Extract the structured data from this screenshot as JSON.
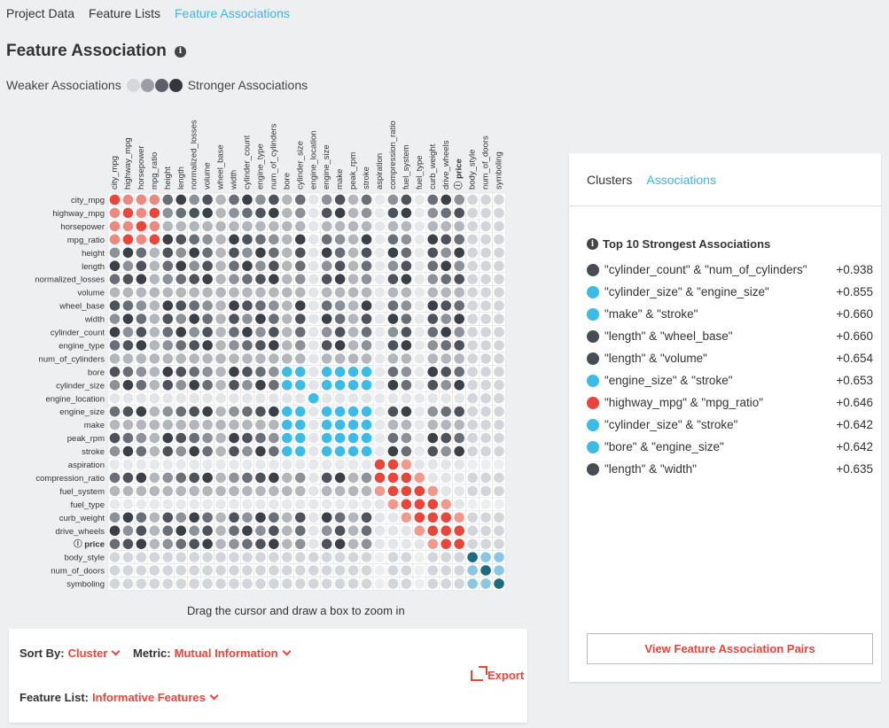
{
  "nav": {
    "tabs": [
      "Project Data",
      "Feature Lists",
      "Feature Associations"
    ],
    "active": 2
  },
  "title": "Feature Association",
  "legend": {
    "weaker": "Weaker Associations",
    "stronger": "Stronger Associations"
  },
  "matrix": {
    "features": [
      "city_mpg",
      "highway_mpg",
      "horsepower",
      "mpg_ratio",
      "height",
      "length",
      "normalized_losses",
      "volume",
      "wheel_base",
      "width",
      "cylinder_count",
      "engine_type",
      "num_of_cylinders",
      "bore",
      "cylinder_size",
      "engine_location",
      "engine_size",
      "make",
      "peak_rpm",
      "stroke",
      "aspiration",
      "compression_ratio",
      "fuel_system",
      "fuel_type",
      "curb_weight",
      "drive_wheels",
      "price",
      "body_style",
      "num_of_doors",
      "symboling"
    ],
    "target_feature": "price",
    "colors": {
      "gray": "#555a63",
      "blue": "#3bbbe6",
      "red": "#e8463a",
      "teal": "#1f6a80",
      "lightblue": "#8cc7e2"
    }
  },
  "zoom_hint": "Drag the cursor and draw a box to zoom in",
  "controls": {
    "sort_label": "Sort By:",
    "sort_value": "Cluster",
    "metric_label": "Metric:",
    "metric_value": "Mutual Information",
    "feature_list_label": "Feature List:",
    "feature_list_value": "Informative Features",
    "export_label": "Export"
  },
  "panel": {
    "tabs": [
      "Clusters",
      "Associations"
    ],
    "active_tab": 1,
    "heading": "Top 10 Strongest Associations",
    "associations": [
      {
        "pair": "\"cylinder_count\" & \"num_of_cylinders\"",
        "score": "+0.938",
        "color": "#474c55"
      },
      {
        "pair": "\"cylinder_size\" & \"engine_size\"",
        "score": "+0.855",
        "color": "#3bbbe6"
      },
      {
        "pair": "\"make\" & \"stroke\"",
        "score": "+0.660",
        "color": "#3bbbe6"
      },
      {
        "pair": "\"length\" & \"wheel_base\"",
        "score": "+0.660",
        "color": "#474c55"
      },
      {
        "pair": "\"length\" & \"volume\"",
        "score": "+0.654",
        "color": "#474c55"
      },
      {
        "pair": "\"engine_size\" & \"stroke\"",
        "score": "+0.653",
        "color": "#3bbbe6"
      },
      {
        "pair": "\"highway_mpg\" & \"mpg_ratio\"",
        "score": "+0.646",
        "color": "#e8463a"
      },
      {
        "pair": "\"cylinder_size\" & \"stroke\"",
        "score": "+0.642",
        "color": "#3bbbe6"
      },
      {
        "pair": "\"bore\" & \"engine_size\"",
        "score": "+0.642",
        "color": "#3bbbe6"
      },
      {
        "pair": "\"length\" & \"width\"",
        "score": "+0.635",
        "color": "#474c55"
      }
    ],
    "button_label": "View Feature Association Pairs"
  }
}
